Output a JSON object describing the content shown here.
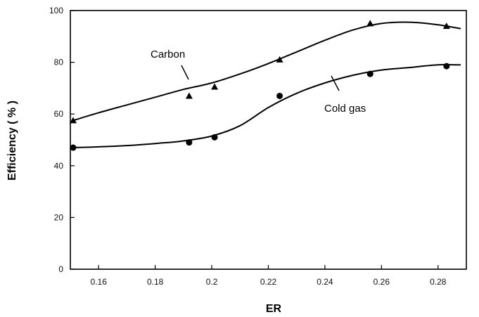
{
  "chart_data": {
    "type": "scatter",
    "xlabel": "ER",
    "ylabel": "Efficiency ( % )",
    "xlim": [
      0.15,
      0.29
    ],
    "ylim": [
      0,
      100
    ],
    "x_ticks": [
      0.16,
      0.18,
      0.2,
      0.22,
      0.24,
      0.26,
      0.28
    ],
    "x_tick_labels": [
      "0.16",
      "0.18",
      "0.2",
      "0.22",
      "0.24",
      "0.26",
      "0.28"
    ],
    "y_ticks": [
      0,
      20,
      40,
      60,
      80,
      100
    ],
    "y_tick_labels": [
      "0",
      "20",
      "40",
      "60",
      "80",
      "100"
    ],
    "grid": false,
    "series": [
      {
        "name": "Carbon",
        "marker": "triangle",
        "color": "#000000",
        "points": [
          {
            "x": 0.151,
            "y": 57.5
          },
          {
            "x": 0.192,
            "y": 67
          },
          {
            "x": 0.201,
            "y": 70.5
          },
          {
            "x": 0.224,
            "y": 81
          },
          {
            "x": 0.256,
            "y": 95
          },
          {
            "x": 0.283,
            "y": 94
          }
        ],
        "curve": [
          [
            0.151,
            57.5
          ],
          [
            0.16,
            60.5
          ],
          [
            0.17,
            63.5
          ],
          [
            0.18,
            66.5
          ],
          [
            0.19,
            69.5
          ],
          [
            0.2,
            72
          ],
          [
            0.21,
            75.5
          ],
          [
            0.22,
            79.5
          ],
          [
            0.23,
            84
          ],
          [
            0.24,
            88.5
          ],
          [
            0.25,
            92.5
          ],
          [
            0.26,
            95
          ],
          [
            0.27,
            95.5
          ],
          [
            0.28,
            94.5
          ],
          [
            0.288,
            93
          ]
        ]
      },
      {
        "name": "Cold gas",
        "marker": "circle",
        "color": "#000000",
        "points": [
          {
            "x": 0.151,
            "y": 47
          },
          {
            "x": 0.192,
            "y": 49
          },
          {
            "x": 0.201,
            "y": 51
          },
          {
            "x": 0.224,
            "y": 67
          },
          {
            "x": 0.256,
            "y": 75.5
          },
          {
            "x": 0.283,
            "y": 78.5
          }
        ],
        "curve": [
          [
            0.151,
            47
          ],
          [
            0.16,
            47.3
          ],
          [
            0.17,
            47.8
          ],
          [
            0.18,
            48.6
          ],
          [
            0.19,
            49.6
          ],
          [
            0.2,
            51.5
          ],
          [
            0.21,
            55.5
          ],
          [
            0.22,
            62.5
          ],
          [
            0.23,
            68
          ],
          [
            0.24,
            72
          ],
          [
            0.25,
            75
          ],
          [
            0.26,
            77
          ],
          [
            0.27,
            78
          ],
          [
            0.28,
            79
          ],
          [
            0.288,
            79
          ]
        ]
      }
    ],
    "annotations": [
      {
        "text": "Carbon",
        "series": "Carbon"
      },
      {
        "text": "Cold gas",
        "series": "Cold gas"
      }
    ]
  }
}
